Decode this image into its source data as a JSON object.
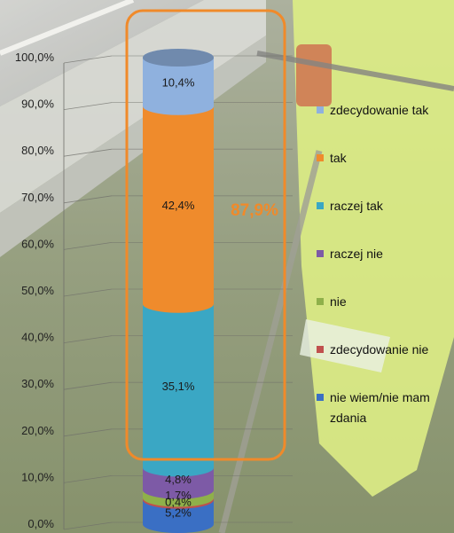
{
  "chart_data": {
    "type": "bar",
    "stacked": true,
    "categories": [
      ""
    ],
    "series": [
      {
        "name": "nie wiem/nie mam zdania",
        "value": 5.2,
        "label": "5,2%",
        "color": "#3a6fc4"
      },
      {
        "name": "zdecydowanie nie",
        "value": 0.4,
        "label": "0,4%",
        "color": "#c0504d"
      },
      {
        "name": "nie",
        "value": 1.7,
        "label": "1,7%",
        "color": "#8fb04a"
      },
      {
        "name": "raczej nie",
        "value": 4.8,
        "label": "4,8%",
        "color": "#7d5aa6"
      },
      {
        "name": "raczej tak",
        "value": 35.1,
        "label": "35,1%",
        "color": "#3aa7c4"
      },
      {
        "name": "tak",
        "value": 42.4,
        "label": "42,4%",
        "color": "#ef8b2c"
      },
      {
        "name": "zdecydowanie tak",
        "value": 10.4,
        "label": "10,4%",
        "color": "#8fb1de"
      }
    ],
    "legend_order": [
      "zdecydowanie tak",
      "tak",
      "raczej tak",
      "raczej nie",
      "nie",
      "zdecydowanie nie",
      "nie wiem/nie mam zdania"
    ],
    "yticks": [
      "0,0%",
      "10,0%",
      "20,0%",
      "30,0%",
      "40,0%",
      "50,0%",
      "60,0%",
      "70,0%",
      "80,0%",
      "90,0%",
      "100,0%"
    ],
    "ylim": [
      0,
      100
    ],
    "annotation": {
      "text": "87,9%",
      "color": "#f08a2a"
    },
    "legend_position": "right",
    "grid": true
  }
}
